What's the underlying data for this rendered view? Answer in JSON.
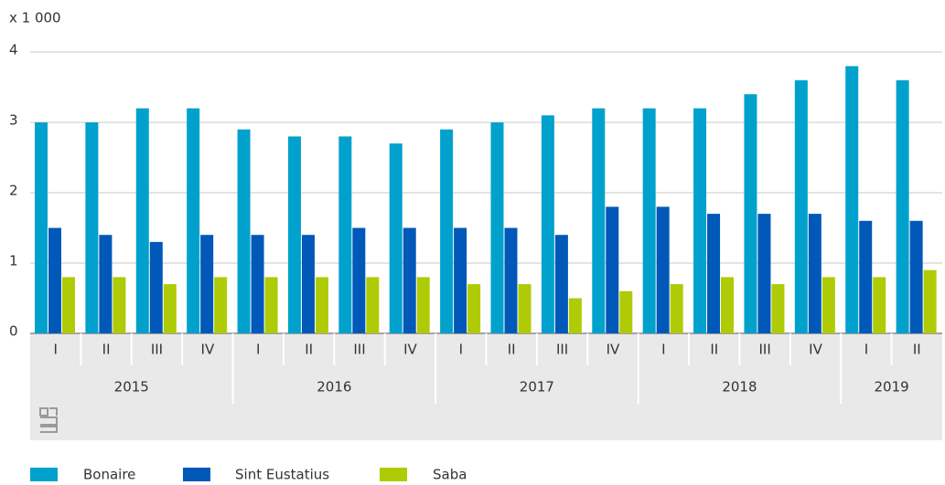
{
  "chart_data": {
    "type": "bar",
    "axis_label": "x 1 000",
    "categories": [
      {
        "year": "2015",
        "quarter": "I"
      },
      {
        "year": "2015",
        "quarter": "II"
      },
      {
        "year": "2015",
        "quarter": "III"
      },
      {
        "year": "2015",
        "quarter": "IV"
      },
      {
        "year": "2016",
        "quarter": "I"
      },
      {
        "year": "2016",
        "quarter": "II"
      },
      {
        "year": "2016",
        "quarter": "III"
      },
      {
        "year": "2016",
        "quarter": "IV"
      },
      {
        "year": "2017",
        "quarter": "I"
      },
      {
        "year": "2017",
        "quarter": "II"
      },
      {
        "year": "2017",
        "quarter": "III"
      },
      {
        "year": "2017",
        "quarter": "IV"
      },
      {
        "year": "2018",
        "quarter": "I"
      },
      {
        "year": "2018",
        "quarter": "II"
      },
      {
        "year": "2018",
        "quarter": "III"
      },
      {
        "year": "2018",
        "quarter": "IV"
      },
      {
        "year": "2019",
        "quarter": "I"
      },
      {
        "year": "2019",
        "quarter": "II"
      }
    ],
    "series": [
      {
        "name": "Bonaire",
        "color": "#00a1cd",
        "values": [
          3.0,
          3.0,
          3.2,
          3.2,
          2.9,
          2.8,
          2.8,
          2.7,
          2.9,
          3.0,
          3.1,
          3.2,
          3.2,
          3.2,
          3.4,
          3.6,
          3.8,
          3.6
        ]
      },
      {
        "name": "Sint Eustatius",
        "color": "#0058b8",
        "values": [
          1.5,
          1.4,
          1.3,
          1.4,
          1.4,
          1.4,
          1.5,
          1.5,
          1.5,
          1.5,
          1.4,
          1.8,
          1.8,
          1.7,
          1.7,
          1.7,
          1.6,
          1.6
        ]
      },
      {
        "name": "Saba",
        "color": "#afcb05",
        "values": [
          0.8,
          0.8,
          0.7,
          0.8,
          0.8,
          0.8,
          0.8,
          0.8,
          0.7,
          0.7,
          0.5,
          0.6,
          0.7,
          0.8,
          0.7,
          0.8,
          0.8,
          0.9
        ]
      }
    ],
    "ylim": [
      0,
      4
    ],
    "yticks": [
      0,
      1,
      2,
      3,
      4
    ],
    "grid": true,
    "legend": "bottom"
  }
}
